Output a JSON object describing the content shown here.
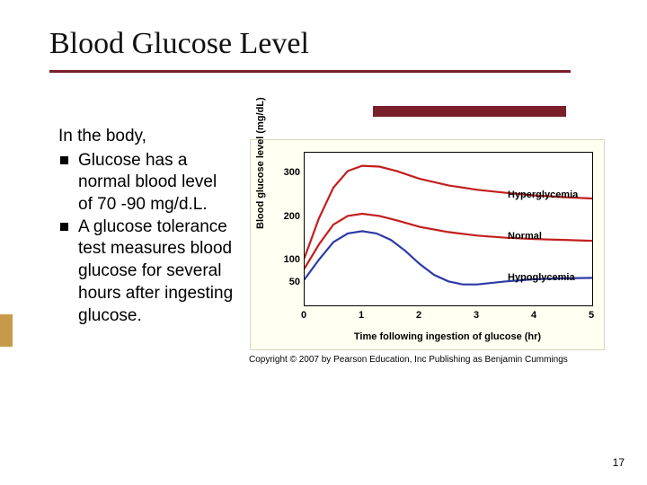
{
  "title": "Blood Glucose Level",
  "page_number": "17",
  "body": {
    "intro": "In the body,",
    "bullets": [
      "Glucose has a normal blood level of 70 -90 mg/d.L.",
      "A glucose tolerance test measures blood glucose for several hours after ingesting glucose."
    ]
  },
  "chart": {
    "type": "line",
    "xlabel": "Time following ingestion of glucose (hr)",
    "ylabel": "Blood glucose level (mg/dL)",
    "background_color": "#fffff2",
    "plot_background": "#ffffff",
    "axis_color": "#000000",
    "xlim": [
      0,
      5
    ],
    "ylim": [
      0,
      350
    ],
    "xticks": [
      0,
      1,
      2,
      3,
      4,
      5
    ],
    "yticks": [
      50,
      100,
      200,
      300
    ],
    "label_fontsize": 11,
    "tick_fontsize": 11,
    "line_width": 2.2,
    "series": [
      {
        "name": "Hyperglycemia",
        "color": "#c41e1e",
        "label_y": 250,
        "points": [
          [
            0,
            110
          ],
          [
            0.25,
            200
          ],
          [
            0.5,
            270
          ],
          [
            0.75,
            308
          ],
          [
            1,
            320
          ],
          [
            1.3,
            318
          ],
          [
            1.6,
            308
          ],
          [
            2,
            290
          ],
          [
            2.5,
            275
          ],
          [
            3,
            265
          ],
          [
            3.5,
            258
          ],
          [
            4,
            252
          ],
          [
            4.5,
            248
          ],
          [
            5,
            245
          ]
        ]
      },
      {
        "name": "Normal",
        "color": "#c41e1e",
        "label_y": 155,
        "points": [
          [
            0,
            85
          ],
          [
            0.25,
            140
          ],
          [
            0.5,
            185
          ],
          [
            0.75,
            205
          ],
          [
            1,
            210
          ],
          [
            1.3,
            205
          ],
          [
            1.6,
            195
          ],
          [
            2,
            180
          ],
          [
            2.5,
            168
          ],
          [
            3,
            160
          ],
          [
            3.5,
            155
          ],
          [
            4,
            152
          ],
          [
            4.5,
            150
          ],
          [
            5,
            148
          ]
        ]
      },
      {
        "name": "Hypoglycemia",
        "color": "#2d3aa5",
        "label_y": 60,
        "points": [
          [
            0,
            60
          ],
          [
            0.25,
            105
          ],
          [
            0.5,
            145
          ],
          [
            0.75,
            165
          ],
          [
            1,
            170
          ],
          [
            1.25,
            165
          ],
          [
            1.5,
            150
          ],
          [
            1.75,
            125
          ],
          [
            2,
            95
          ],
          [
            2.25,
            70
          ],
          [
            2.5,
            55
          ],
          [
            2.75,
            48
          ],
          [
            3,
            48
          ],
          [
            3.5,
            55
          ],
          [
            4,
            60
          ],
          [
            4.5,
            62
          ],
          [
            5,
            63
          ]
        ]
      }
    ]
  },
  "copyright": "Copyright © 2007 by Pearson Education, Inc Publishing as Benjamin Cummings",
  "theme": {
    "rule_color": "#7a1f2a",
    "tab_color": "#c79a4a"
  }
}
